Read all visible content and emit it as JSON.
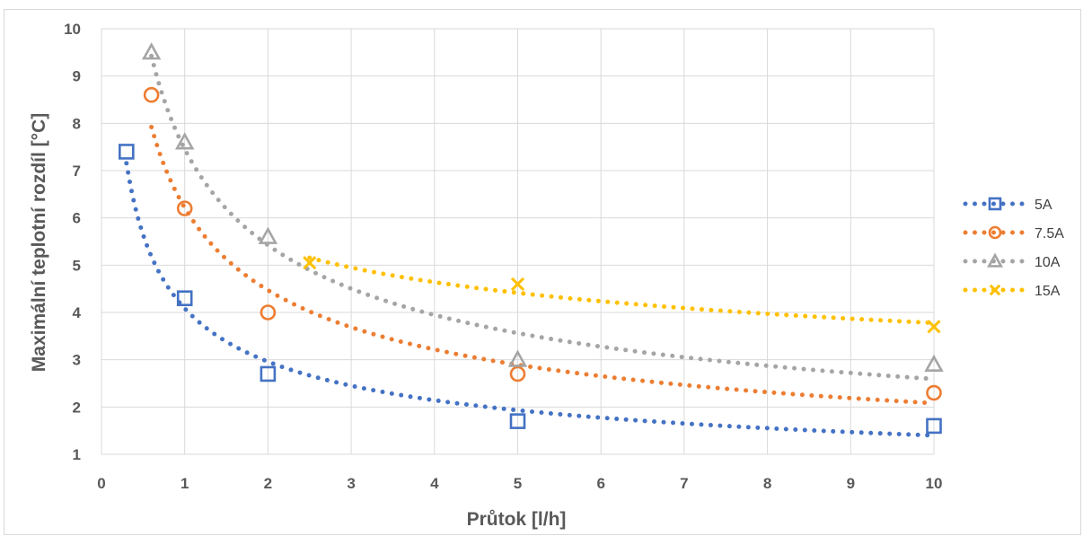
{
  "chart_data": {
    "type": "scatter",
    "title": "",
    "xlabel": "Průtok [l/h]",
    "ylabel": "Maximální teplotní rozdíl [°C]",
    "xlim": [
      0,
      10
    ],
    "ylim": [
      1,
      10
    ],
    "xticks": [
      "0",
      "1",
      "2",
      "3",
      "4",
      "5",
      "6",
      "7",
      "8",
      "9",
      "10"
    ],
    "yticks": [
      "1",
      "2",
      "3",
      "4",
      "5",
      "6",
      "7",
      "8",
      "9",
      "10"
    ],
    "grid": true,
    "legend_position": "right",
    "series": [
      {
        "name": "5A",
        "color": "#4472C4",
        "marker": "square",
        "trendline": "dotted",
        "x": [
          0.3,
          1,
          2,
          5,
          10
        ],
        "y": [
          7.4,
          4.3,
          2.7,
          1.7,
          1.6
        ]
      },
      {
        "name": "7.5A",
        "color": "#ED7D31",
        "marker": "circle",
        "trendline": "dotted",
        "x": [
          0.6,
          1,
          2,
          5,
          10
        ],
        "y": [
          8.6,
          6.2,
          4.0,
          2.7,
          2.3
        ]
      },
      {
        "name": "10A",
        "color": "#A5A5A5",
        "marker": "triangle",
        "trendline": "dotted",
        "x": [
          0.6,
          1,
          2,
          5,
          10
        ],
        "y": [
          9.5,
          7.6,
          5.6,
          3.0,
          2.9
        ]
      },
      {
        "name": "15A",
        "color": "#FFC000",
        "marker": "x",
        "trendline": "dotted",
        "x": [
          2.5,
          5,
          10
        ],
        "y": [
          5.05,
          4.6,
          3.7
        ]
      }
    ]
  }
}
